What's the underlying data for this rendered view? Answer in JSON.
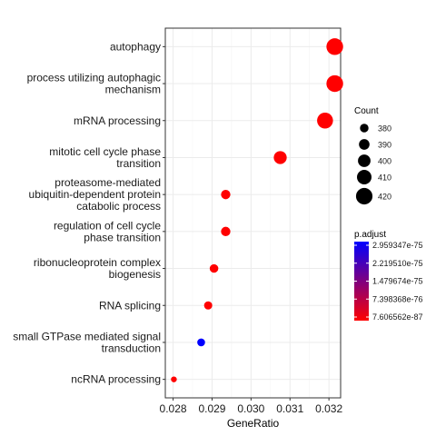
{
  "chart_data": {
    "type": "scatter",
    "xlabel": "GeneRatio",
    "ylabel": "",
    "xlim": [
      0.0278,
      0.0323
    ],
    "xticks": [
      "0.028",
      "0.029",
      "0.030",
      "0.031",
      "0.032"
    ],
    "xtick_values": [
      0.028,
      0.029,
      0.03,
      0.031,
      0.032
    ],
    "grid": true,
    "categories": [
      "autophagy",
      "process utilizing autophagic\nmechanism",
      "mRNA processing",
      "mitotic cell cycle phase\ntransition",
      "proteasome-mediated\nubiquitin-dependent protein\ncatabolic process",
      "regulation of cell cycle\nphase transition",
      "ribonucleoprotein complex\nbiogenesis",
      "RNA splicing",
      "small GTPase mediated signal\ntransduction",
      "ncRNA processing"
    ],
    "points": [
      {
        "term": "autophagy",
        "gene_ratio": 0.03215,
        "count": 421,
        "p_adjust_color": "#ff0000"
      },
      {
        "term": "process utilizing autophagic mechanism",
        "gene_ratio": 0.03215,
        "count": 421,
        "p_adjust_color": "#ff0000"
      },
      {
        "term": "mRNA processing",
        "gene_ratio": 0.0319,
        "count": 417,
        "p_adjust_color": "#ff0000"
      },
      {
        "term": "mitotic cell cycle phase transition",
        "gene_ratio": 0.03075,
        "count": 402,
        "p_adjust_color": "#ff0000"
      },
      {
        "term": "proteasome-mediated ubiquitin-dependent protein catabolic process",
        "gene_ratio": 0.02935,
        "count": 384,
        "p_adjust_color": "#ff0000"
      },
      {
        "term": "regulation of cell cycle phase transition",
        "gene_ratio": 0.02935,
        "count": 384,
        "p_adjust_color": "#ff0000"
      },
      {
        "term": "ribonucleoprotein complex biogenesis",
        "gene_ratio": 0.02905,
        "count": 380,
        "p_adjust_color": "#ff0000"
      },
      {
        "term": "RNA splicing",
        "gene_ratio": 0.0289,
        "count": 378,
        "p_adjust_color": "#ff0000"
      },
      {
        "term": "small GTPase mediated signal transduction",
        "gene_ratio": 0.02872,
        "count": 376,
        "p_adjust_color": "#0000ff"
      },
      {
        "term": "ncRNA processing",
        "gene_ratio": 0.02802,
        "count": 366,
        "p_adjust_color": "#ff0000"
      }
    ],
    "legend_size": {
      "title": "Count",
      "labels": [
        "380",
        "390",
        "400",
        "410",
        "420"
      ],
      "values": [
        380,
        390,
        400,
        410,
        420
      ]
    },
    "legend_color": {
      "title": "p.adjust",
      "labels": [
        "2.959347e-75",
        "2.219510e-75",
        "1.479674e-75",
        "7.398368e-76",
        "7.606562e-87"
      ],
      "high_color": "#0000ff",
      "low_color": "#ff0000"
    },
    "legend_position": "right"
  }
}
